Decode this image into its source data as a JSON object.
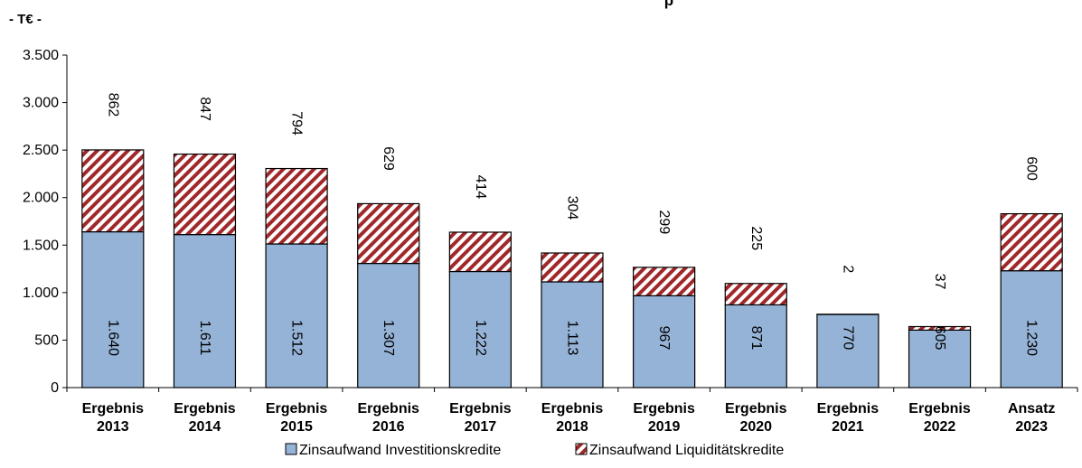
{
  "chart_data": {
    "type": "bar",
    "stacked": true,
    "title": "p",
    "unit_label": "- T€ -",
    "categories": [
      [
        "Ergebnis",
        "2013"
      ],
      [
        "Ergebnis",
        "2014"
      ],
      [
        "Ergebnis",
        "2015"
      ],
      [
        "Ergebnis",
        "2016"
      ],
      [
        "Ergebnis",
        "2017"
      ],
      [
        "Ergebnis",
        "2018"
      ],
      [
        "Ergebnis",
        "2019"
      ],
      [
        "Ergebnis",
        "2020"
      ],
      [
        "Ergebnis",
        "2021"
      ],
      [
        "Ergebnis",
        "2022"
      ],
      [
        "Ansatz",
        "2023"
      ]
    ],
    "series": [
      {
        "name": "Zinsaufwand Investitionskredite",
        "values": [
          1640,
          1611,
          1512,
          1307,
          1222,
          1113,
          967,
          871,
          770,
          605,
          1230
        ],
        "labels": [
          "1.640",
          "1.611",
          "1.512",
          "1.307",
          "1.222",
          "1.113",
          "967",
          "871",
          "770",
          "605",
          "1.230"
        ],
        "color": "#95b3d7"
      },
      {
        "name": "Zinsaufwand Liquiditätskredite",
        "values": [
          862,
          847,
          794,
          629,
          414,
          304,
          299,
          225,
          2,
          37,
          600
        ],
        "labels": [
          "862",
          "847",
          "794",
          "629",
          "414",
          "304",
          "299",
          "225",
          "2",
          "37",
          "600"
        ],
        "color": "#a52a2a",
        "pattern": "diagonal-hatch"
      }
    ],
    "ylim": [
      0,
      3500
    ],
    "yticks": [
      0,
      500,
      1000,
      1500,
      2000,
      2500,
      3000,
      3500
    ],
    "ytick_labels": [
      "0",
      "500",
      "1.000",
      "1.500",
      "2.000",
      "2.500",
      "3.000",
      "3.500"
    ],
    "grid": false,
    "legend_position": "bottom"
  }
}
